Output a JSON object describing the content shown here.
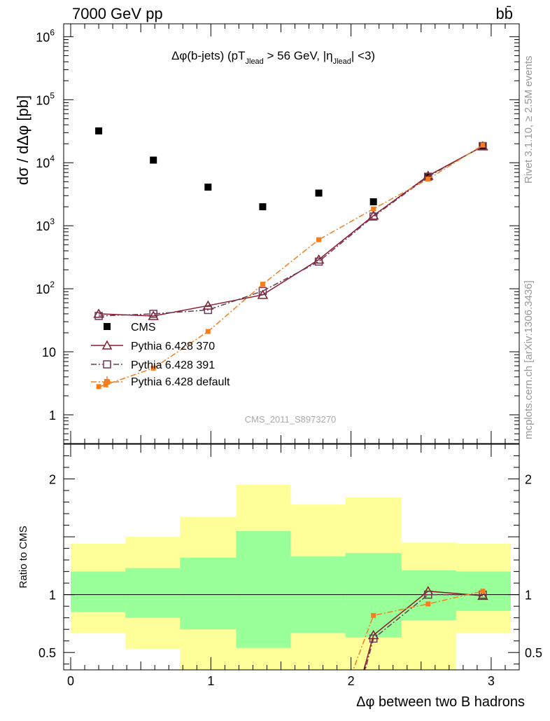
{
  "header": {
    "energy": "7000 GeV pp",
    "process": "bb̄"
  },
  "side_labels": {
    "rivet": "Rivet 3.1.10, ≥ 2.5M events",
    "mcplots": "mcplots.cern.ch [arXiv:1306.3436]"
  },
  "chart_data": [
    {
      "type": "scatter",
      "panel": "main",
      "title": "Δφ(b-jets) (pT_Jlead > 56 GeV, |η_Jlead| <3)",
      "title_parts": {
        "pre": "Δφ(b-jets) (pT",
        "sub1": "Jlead",
        "mid": " >  56 GeV, |η",
        "sub2": "Jlead",
        "post": "| <3)"
      },
      "ylabel": "dσ / dΔφ [pb]",
      "watermark": "CMS_2011_S8973270",
      "yscale": "log",
      "ylim": [
        0.35,
        1600000
      ],
      "xlim": [
        -0.05,
        3.2
      ],
      "y_tick_labels": [
        {
          "value": 1,
          "label": "1"
        },
        {
          "value": 10,
          "label": "10"
        },
        {
          "value": 100,
          "mant": "10",
          "exp": "2"
        },
        {
          "value": 1000,
          "mant": "10",
          "exp": "3"
        },
        {
          "value": 10000,
          "mant": "10",
          "exp": "4"
        },
        {
          "value": 100000,
          "mant": "10",
          "exp": "5"
        },
        {
          "value": 1000000,
          "mant": "10",
          "exp": "6"
        }
      ],
      "x_bin_edges": [
        0.0,
        0.39,
        0.78,
        1.18,
        1.57,
        1.96,
        2.36,
        2.75,
        3.14
      ],
      "legend": [
        "CMS",
        "Pythia 6.428 370",
        "Pythia 6.428 391",
        "Pythia 6.428 default"
      ],
      "series": [
        {
          "name": "CMS",
          "color": "#000000",
          "marker": "filled-square",
          "x": [
            0.2,
            0.59,
            0.98,
            1.37,
            1.77,
            2.16,
            2.55,
            2.94
          ],
          "y": [
            32000,
            11000,
            4100,
            2000,
            3300,
            2400,
            6000,
            18500
          ]
        },
        {
          "name": "Pythia 6.428 370",
          "color": "#8b1a2b",
          "marker": "open-triangle",
          "line": "solid",
          "x": [
            0.2,
            0.59,
            0.98,
            1.37,
            1.77,
            2.16,
            2.55,
            2.94
          ],
          "y": [
            40,
            37,
            54,
            80,
            290,
            1450,
            6200,
            18200
          ]
        },
        {
          "name": "Pythia 6.428 391",
          "color": "#6b3a55",
          "marker": "open-square",
          "line": "dashdot",
          "x": [
            0.2,
            0.59,
            0.98,
            1.37,
            1.77,
            2.16,
            2.55,
            2.94
          ],
          "y": [
            37,
            40,
            46,
            92,
            270,
            1400,
            6000,
            18400
          ]
        },
        {
          "name": "Pythia 6.428 default",
          "color": "#f47d20",
          "marker": "filled-square-small",
          "line": "dashdot",
          "x": [
            0.2,
            0.25,
            0.59,
            0.98,
            1.37,
            1.77,
            2.16,
            2.55,
            2.94
          ],
          "y": [
            2.8,
            3.0,
            5.5,
            21,
            118,
            600,
            1850,
            5500,
            19000
          ]
        }
      ]
    },
    {
      "type": "line",
      "panel": "ratio",
      "ylabel": "Ratio to CMS",
      "xlabel": "Δφ between two B hadrons",
      "ylim": [
        0.35,
        2.3
      ],
      "xlim": [
        -0.05,
        3.2
      ],
      "y_ticks": [
        {
          "value": 0.5,
          "label": "0.5"
        },
        {
          "value": 1,
          "label": "1"
        },
        {
          "value": 2,
          "label": "2"
        }
      ],
      "x_ticks": [
        {
          "value": 0,
          "label": "0"
        },
        {
          "value": 1,
          "label": "1"
        },
        {
          "value": 2,
          "label": "2"
        },
        {
          "value": 3,
          "label": "3"
        }
      ],
      "reference_line": 1,
      "bands": {
        "x_edges": [
          0.0,
          0.39,
          0.78,
          1.18,
          1.57,
          1.96,
          2.36,
          2.75,
          3.14
        ],
        "yellow_lo": [
          0.67,
          0.53,
          0.35,
          0.35,
          0.35,
          0.35,
          0.35,
          0.67,
          0.67
        ],
        "yellow_hi": [
          1.44,
          1.5,
          1.67,
          1.95,
          1.78,
          1.84,
          1.45,
          1.44,
          1.44
        ],
        "green_lo": [
          0.85,
          0.8,
          0.7,
          0.54,
          0.67,
          0.63,
          0.78,
          0.86,
          0.86
        ],
        "green_hi": [
          1.2,
          1.23,
          1.32,
          1.55,
          1.33,
          1.36,
          1.21,
          1.2,
          1.2
        ],
        "yellow_color": "#ffff99",
        "green_color": "#99ff99"
      },
      "series": [
        {
          "name": "Pythia 6.428 370",
          "color": "#8b1a2b",
          "marker": "open-triangle",
          "line": "solid",
          "x": [
            2.08,
            2.16,
            2.55,
            2.94
          ],
          "y": [
            0.3,
            0.65,
            1.03,
            0.99
          ]
        },
        {
          "name": "Pythia 6.428 391",
          "color": "#6b3a55",
          "marker": "open-square",
          "line": "dashdot",
          "x": [
            2.09,
            2.16,
            2.55,
            2.94
          ],
          "y": [
            0.3,
            0.62,
            1.0,
            1.0
          ]
        },
        {
          "name": "Pythia 6.428 default",
          "color": "#f47d20",
          "marker": "filled-square-small",
          "line": "dashdot",
          "x": [
            2.0,
            2.16,
            2.55,
            2.94
          ],
          "y": [
            0.3,
            0.82,
            0.92,
            1.03
          ]
        }
      ]
    }
  ]
}
